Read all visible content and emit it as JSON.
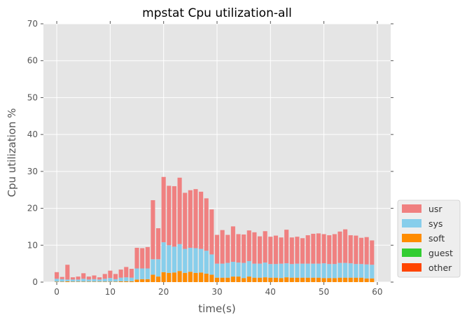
{
  "chart_data": {
    "type": "bar",
    "stacked": true,
    "title": "mpstat Cpu utilization-all",
    "xlabel": "time(s)",
    "ylabel": "Cpu utilization %",
    "xlim": [
      -2.5,
      62.5
    ],
    "ylim": [
      0,
      70
    ],
    "xticks": [
      0,
      10,
      20,
      30,
      40,
      50,
      60
    ],
    "yticks": [
      0,
      10,
      20,
      30,
      40,
      50,
      60,
      70
    ],
    "grid": true,
    "legend_position": "lower-right-outside",
    "x": [
      0,
      1,
      2,
      3,
      4,
      5,
      6,
      7,
      8,
      9,
      10,
      11,
      12,
      13,
      14,
      15,
      16,
      17,
      18,
      19,
      20,
      21,
      22,
      23,
      24,
      25,
      26,
      27,
      28,
      29,
      30,
      31,
      32,
      33,
      34,
      35,
      36,
      37,
      38,
      39,
      40,
      41,
      42,
      43,
      44,
      45,
      46,
      47,
      48,
      49,
      50,
      51,
      52,
      53,
      54,
      55,
      56,
      57,
      58,
      59
    ],
    "series": [
      {
        "name": "other",
        "color": "#ff4500",
        "values": [
          0,
          0,
          0,
          0,
          0,
          0,
          0,
          0,
          0,
          0,
          0,
          0,
          0,
          0,
          0,
          0,
          0,
          0,
          0,
          0,
          0,
          0,
          0,
          0,
          0,
          0,
          0,
          0,
          0,
          0,
          0,
          0,
          0,
          0,
          0,
          0,
          0,
          0,
          0,
          0,
          0,
          0,
          0,
          0,
          0,
          0,
          0,
          0,
          0,
          0,
          0,
          0,
          0,
          0,
          0,
          0,
          0,
          0,
          0,
          0
        ]
      },
      {
        "name": "guest",
        "color": "#32cd32",
        "values": [
          0,
          0,
          0,
          0,
          0,
          0,
          0,
          0,
          0,
          0,
          0,
          0,
          0,
          0,
          0,
          0,
          0,
          0,
          0,
          0,
          0,
          0,
          0,
          0,
          0,
          0,
          0,
          0,
          0,
          0,
          0,
          0,
          0,
          0,
          0,
          0,
          0,
          0,
          0,
          0,
          0,
          0,
          0,
          0,
          0,
          0,
          0,
          0,
          0,
          0,
          0,
          0,
          0,
          0,
          0,
          0,
          0,
          0,
          0,
          0
        ]
      },
      {
        "name": "soft",
        "color": "#ff8c00",
        "values": [
          0.1,
          0.1,
          0.2,
          0.1,
          0.1,
          0.1,
          0.1,
          0.1,
          0.1,
          0.1,
          0.1,
          0.1,
          0.2,
          0.2,
          0.2,
          0.7,
          0.8,
          0.8,
          2.0,
          1.5,
          2.7,
          2.5,
          2.6,
          3.0,
          2.5,
          2.8,
          2.5,
          2.6,
          2.3,
          2.0,
          1.2,
          1.2,
          1.2,
          1.5,
          1.5,
          1.1,
          1.5,
          1.2,
          1.2,
          1.3,
          1.2,
          1.2,
          1.1,
          1.3,
          1.2,
          1.2,
          1.2,
          1.2,
          1.2,
          1.2,
          1.1,
          1.1,
          1.1,
          1.2,
          1.2,
          1.2,
          1.2,
          1.2,
          1.0,
          1.0
        ]
      },
      {
        "name": "sys",
        "color": "#87ceeb",
        "values": [
          0.8,
          0.7,
          0.5,
          0.6,
          0.6,
          0.8,
          0.6,
          0.7,
          0.6,
          0.8,
          1.0,
          0.7,
          1.0,
          1.1,
          1.0,
          3.0,
          2.9,
          2.9,
          4.2,
          4.7,
          8.1,
          7.5,
          7.0,
          7.3,
          6.5,
          6.5,
          6.7,
          6.4,
          6.2,
          5.5,
          3.8,
          3.8,
          4.0,
          4.0,
          3.8,
          4.1,
          4.2,
          3.8,
          3.8,
          4.0,
          3.7,
          3.7,
          3.9,
          3.8,
          3.7,
          3.8,
          3.8,
          3.8,
          3.8,
          3.8,
          4.0,
          3.8,
          3.8,
          4.0,
          4.0,
          3.9,
          3.7,
          3.7,
          3.8,
          3.7
        ]
      },
      {
        "name": "usr",
        "color": "#f08080",
        "values": [
          1.8,
          0.6,
          4.0,
          0.6,
          0.8,
          1.5,
          0.8,
          1.0,
          0.6,
          1.3,
          2.0,
          1.4,
          2.2,
          2.8,
          2.4,
          5.6,
          5.5,
          5.8,
          16.0,
          8.4,
          17.7,
          16.1,
          16.4,
          18.0,
          15.2,
          15.6,
          16.0,
          15.5,
          14.2,
          12.2,
          7.8,
          9.1,
          7.6,
          9.6,
          7.7,
          7.7,
          8.3,
          8.5,
          7.4,
          8.5,
          7.4,
          7.7,
          7.1,
          9.1,
          7.2,
          7.3,
          6.9,
          7.7,
          8.1,
          8.2,
          7.9,
          7.8,
          8.1,
          8.5,
          9.1,
          7.6,
          7.7,
          7.1,
          7.4,
          6.6
        ]
      }
    ]
  }
}
